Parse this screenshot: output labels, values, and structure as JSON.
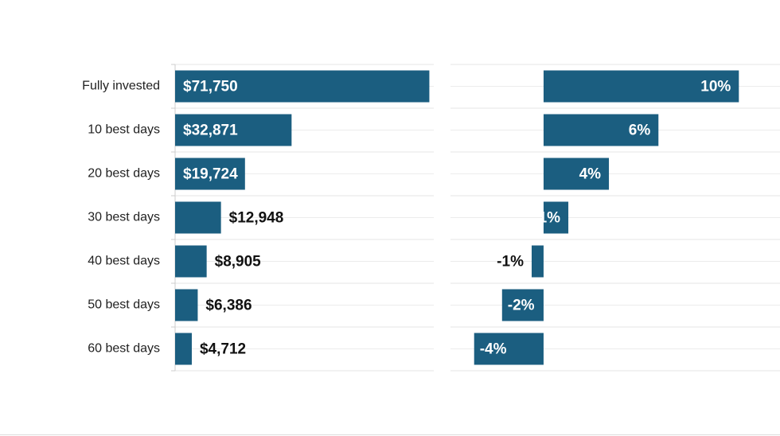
{
  "chart_data": [
    {
      "type": "bar",
      "categories": [
        "Fully invested",
        "10 best days",
        "20 best days",
        "30 best days",
        "40 best days",
        "50 best days",
        "60 best days"
      ],
      "values": [
        71750,
        32871,
        19724,
        12948,
        8905,
        6386,
        4712
      ],
      "value_labels": [
        "$71,750",
        "$32,871",
        "$19,724",
        "$12,948",
        "$8,905",
        "$6,386",
        "$4,712"
      ],
      "color": "#1b5e80",
      "xlim": [
        0,
        73000
      ]
    },
    {
      "type": "bar",
      "values": [
        10.49,
        6.17,
        3.51,
        1.33,
        -0.64,
        -2.23,
        -3.73
      ],
      "value_labels": [
        "10%",
        "6%",
        "4%",
        "1%",
        "-1%",
        "-2%",
        "-4%"
      ],
      "color": "#1b5e80",
      "xlim": [
        -5,
        12.7
      ]
    }
  ]
}
